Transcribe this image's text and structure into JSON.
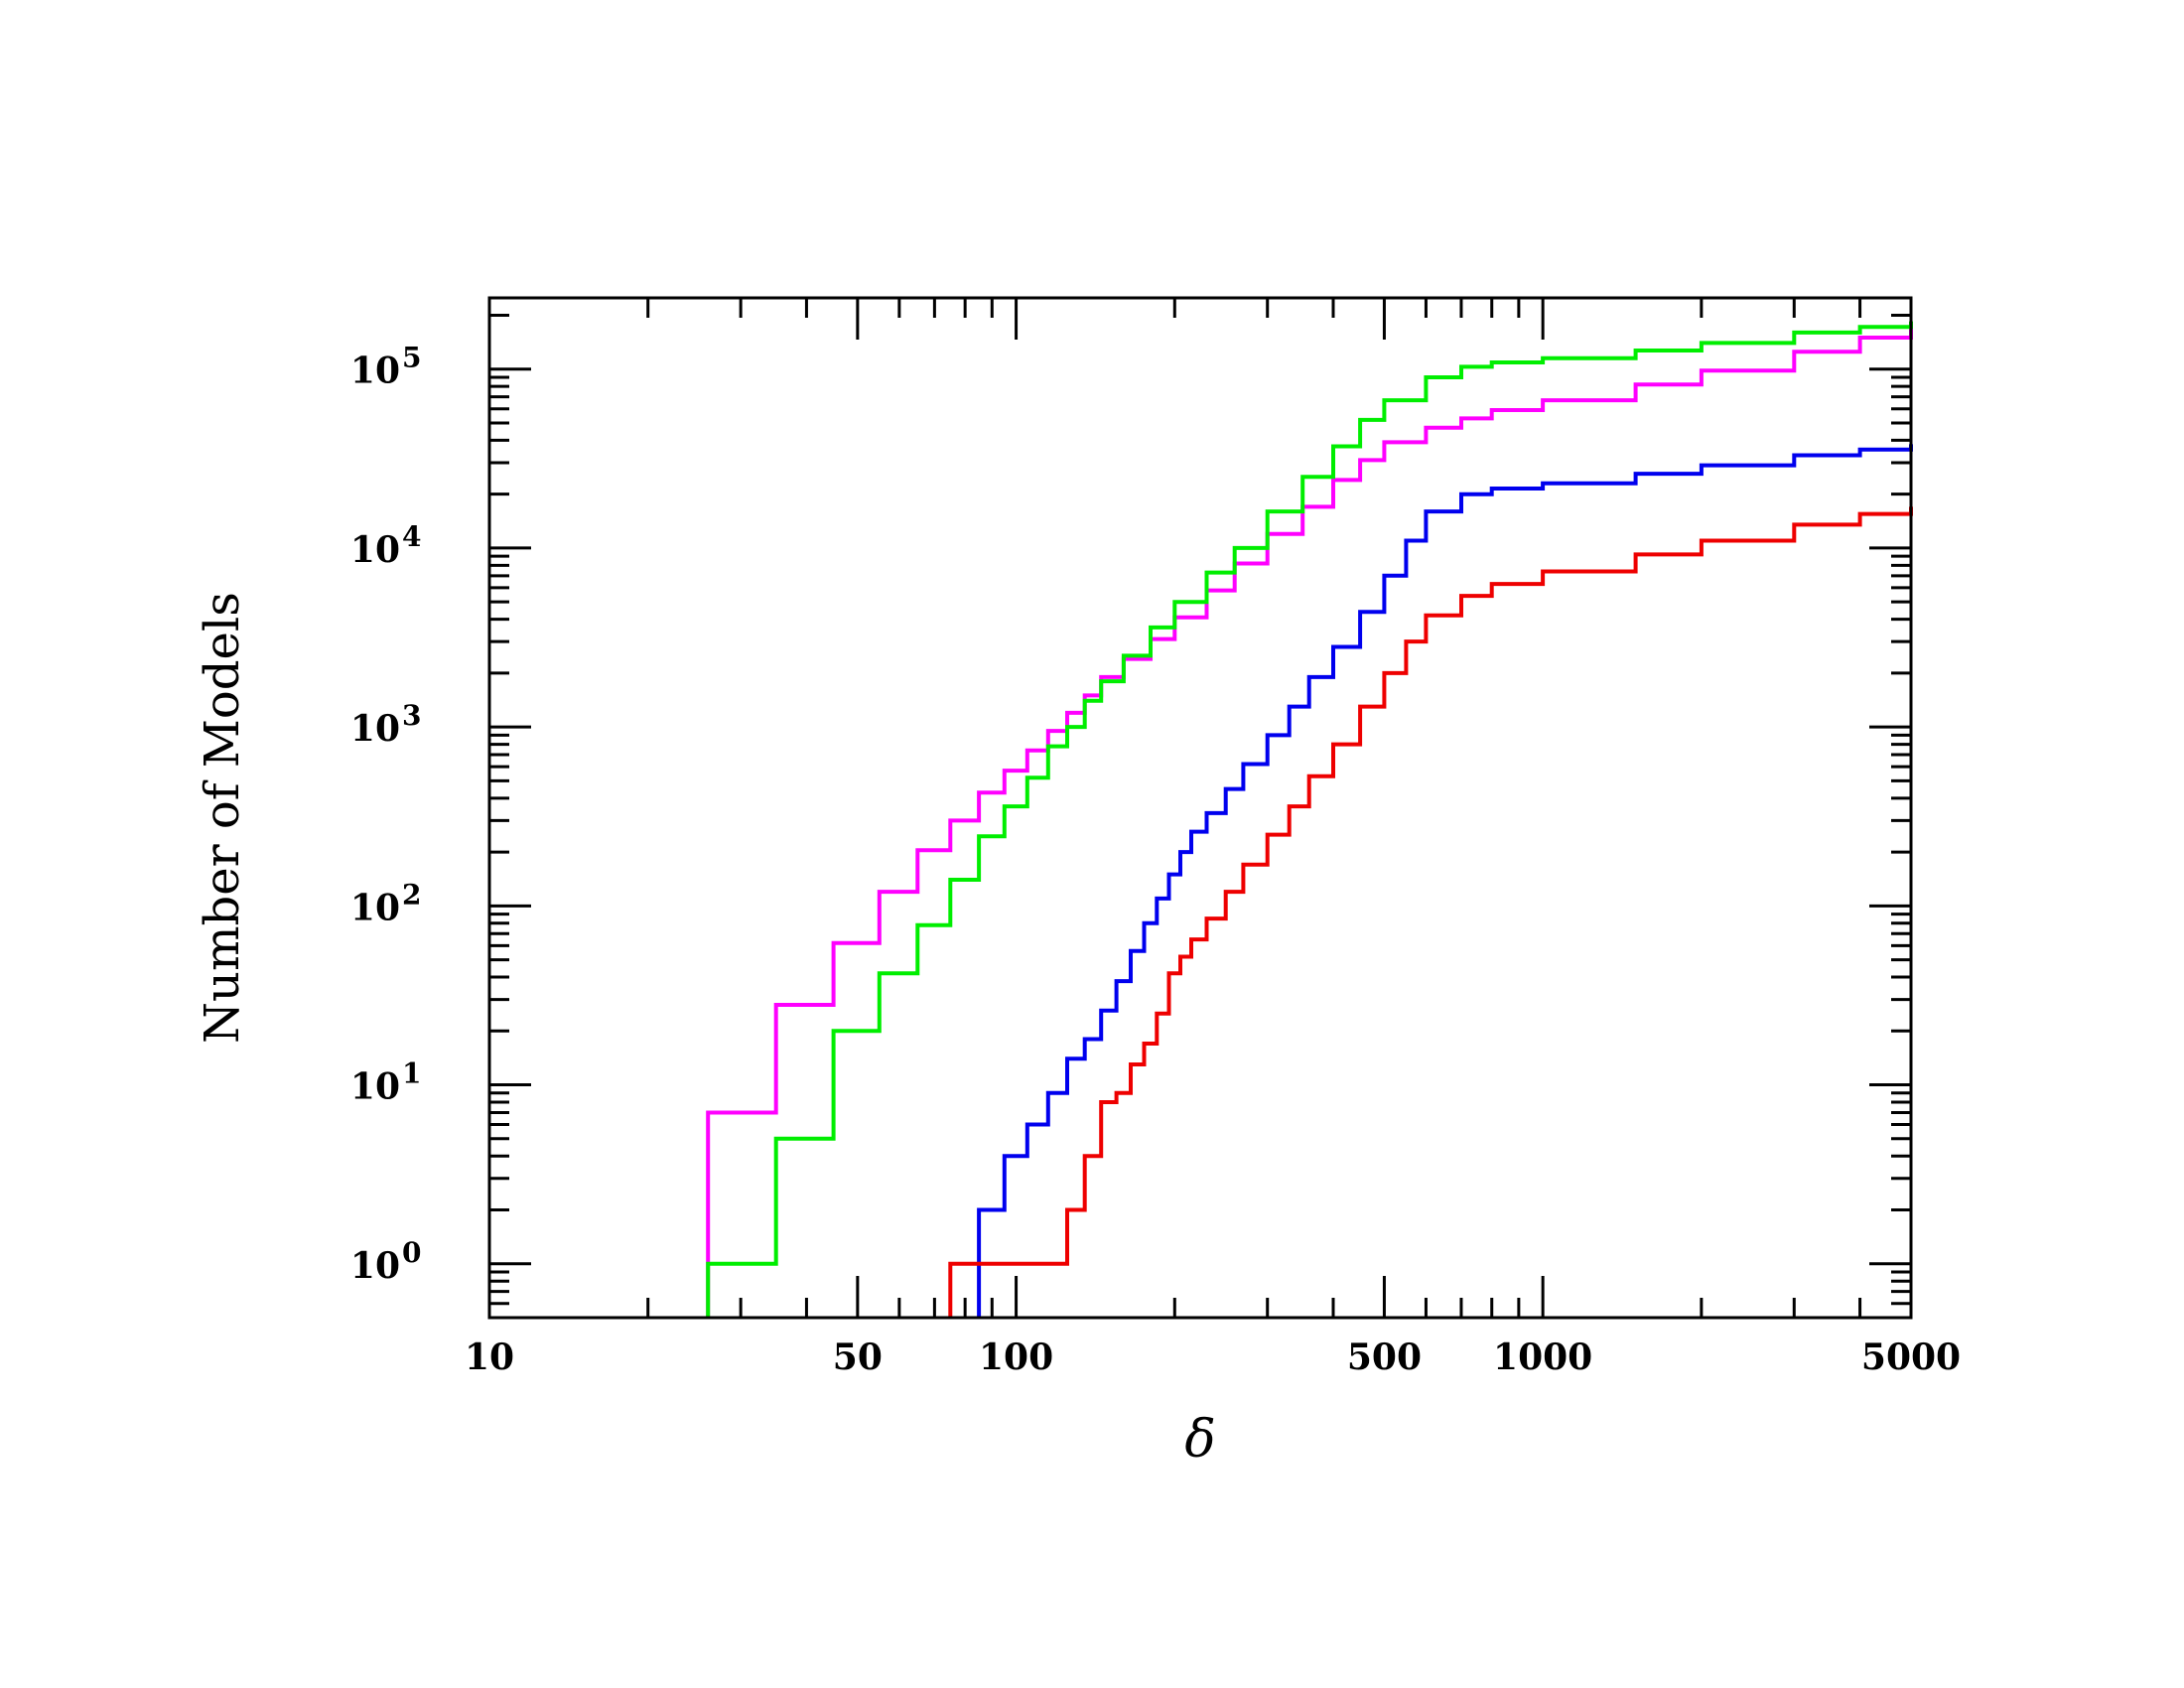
{
  "chart_data": {
    "type": "line",
    "xlabel": "δ",
    "ylabel": "Number of Models",
    "x_scale": "log",
    "y_scale": "log",
    "xlim": [
      10,
      5000
    ],
    "ylim": [
      0.5,
      250000
    ],
    "x_tick_labels": [
      {
        "value": 10,
        "label": "10"
      },
      {
        "value": 50,
        "label": "50"
      },
      {
        "value": 100,
        "label": "100"
      },
      {
        "value": 500,
        "label": "500"
      },
      {
        "value": 1000,
        "label": "1000"
      },
      {
        "value": 5000,
        "label": "5000"
      }
    ],
    "y_tick_labels": [
      {
        "value": 1,
        "base": "10",
        "exp": "0"
      },
      {
        "value": 10,
        "base": "10",
        "exp": "1"
      },
      {
        "value": 100,
        "base": "10",
        "exp": "2"
      },
      {
        "value": 1000,
        "base": "10",
        "exp": "3"
      },
      {
        "value": 10000,
        "base": "10",
        "exp": "4"
      },
      {
        "value": 100000,
        "base": "10",
        "exp": "5"
      }
    ],
    "grid": false,
    "line_style": "step",
    "series": [
      {
        "color": "#ff00ff",
        "x": [
          26,
          26,
          35,
          45,
          55,
          65,
          75,
          85,
          95,
          105,
          115,
          125,
          135,
          145,
          160,
          180,
          200,
          230,
          260,
          300,
          350,
          400,
          450,
          500,
          600,
          700,
          800,
          1000,
          1500,
          2000,
          3000,
          4000,
          5000
        ],
        "y": [
          0.5,
          7,
          28,
          62,
          120,
          205,
          300,
          430,
          570,
          740,
          950,
          1200,
          1500,
          1900,
          2400,
          3100,
          4100,
          5800,
          8200,
          12000,
          17000,
          24000,
          31000,
          39000,
          47000,
          53000,
          59000,
          67000,
          82000,
          98000,
          125000,
          150000,
          175000
        ]
      },
      {
        "color": "#00ee00",
        "x": [
          26,
          35,
          45,
          55,
          65,
          75,
          85,
          95,
          105,
          115,
          125,
          135,
          145,
          160,
          180,
          200,
          230,
          260,
          300,
          350,
          400,
          450,
          500,
          600,
          700,
          800,
          1000,
          1500,
          2000,
          3000,
          4000,
          5000
        ],
        "y": [
          1,
          5,
          20,
          42,
          78,
          140,
          245,
          360,
          520,
          780,
          1000,
          1400,
          1800,
          2500,
          3600,
          5000,
          7300,
          10000,
          16000,
          25000,
          37000,
          52000,
          67000,
          90000,
          103000,
          109000,
          115000,
          127000,
          140000,
          160000,
          172000,
          185000
        ]
      },
      {
        "color": "#0000ee",
        "x": [
          85,
          85,
          95,
          105,
          115,
          125,
          135,
          145,
          155,
          165,
          175,
          185,
          195,
          205,
          215,
          230,
          250,
          270,
          300,
          330,
          360,
          400,
          450,
          500,
          550,
          600,
          700,
          800,
          1000,
          1500,
          2000,
          3000,
          4000,
          5000
        ],
        "y": [
          0.5,
          2,
          4,
          6,
          9,
          14,
          18,
          26,
          38,
          56,
          80,
          110,
          150,
          200,
          260,
          330,
          450,
          620,
          900,
          1300,
          1900,
          2800,
          4400,
          7000,
          11000,
          16000,
          20000,
          21500,
          23000,
          26000,
          29000,
          33000,
          35500,
          38000
        ]
      },
      {
        "color": "#ee0000",
        "x": [
          75,
          75,
          125,
          135,
          145,
          155,
          165,
          175,
          185,
          195,
          205,
          215,
          230,
          250,
          270,
          300,
          330,
          360,
          400,
          450,
          500,
          550,
          600,
          700,
          800,
          1000,
          1500,
          2000,
          3000,
          4000,
          5000
        ],
        "y": [
          0.5,
          1,
          2,
          4,
          8,
          9,
          13,
          17,
          25,
          42,
          52,
          65,
          85,
          120,
          170,
          250,
          360,
          530,
          800,
          1300,
          2000,
          3000,
          4200,
          5400,
          6300,
          7400,
          9200,
          11000,
          13500,
          15500,
          17000
        ]
      }
    ]
  }
}
